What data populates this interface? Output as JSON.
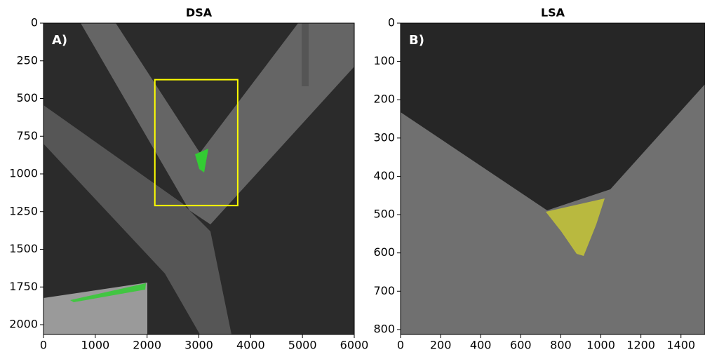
{
  "chart_data": [
    {
      "type": "image",
      "title": "DSA",
      "annotation": "A)",
      "xlim": [
        0,
        6000
      ],
      "ylim": [
        2065,
        0
      ],
      "xticks": [
        0,
        1000,
        2000,
        3000,
        4000,
        5000,
        6000
      ],
      "yticks": [
        0,
        250,
        500,
        750,
        1000,
        1250,
        1500,
        1750,
        2000
      ],
      "box": {
        "x": [
          2150,
          3750
        ],
        "y": [
          375,
          1210
        ],
        "color": "#ffff00"
      }
    },
    {
      "type": "image",
      "title": "LSA",
      "annotation": "B)",
      "xlim": [
        0,
        1520
      ],
      "ylim": [
        813,
        0
      ],
      "xticks": [
        0,
        200,
        400,
        600,
        800,
        1000,
        1200,
        1400
      ],
      "yticks": [
        0,
        100,
        200,
        300,
        400,
        500,
        600,
        700,
        800
      ]
    }
  ]
}
